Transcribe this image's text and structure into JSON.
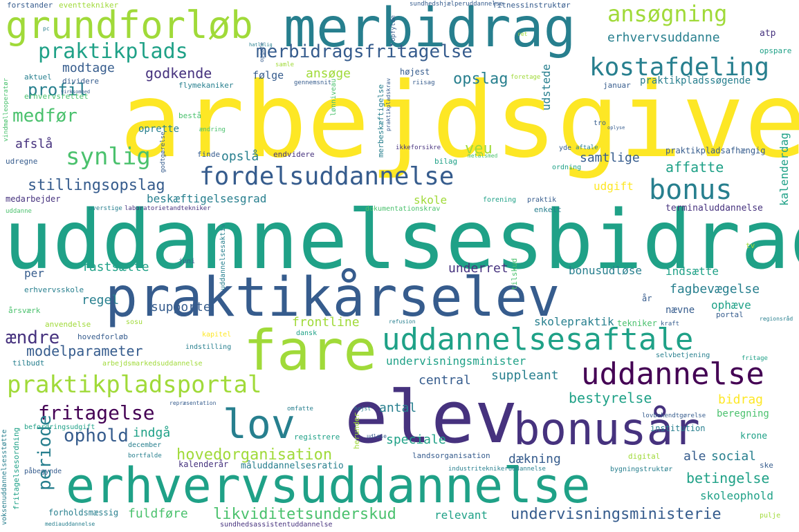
{
  "colors": {
    "background": "#ffffff",
    "palette": [
      "#440154",
      "#46327e",
      "#365c8d",
      "#277f8e",
      "#1fa187",
      "#4ac16d",
      "#a0da39",
      "#fde725"
    ]
  },
  "words": [
    {
      "text": "arbejdsgiver",
      "color": 7
    },
    {
      "text": "uddannelsesbidrag",
      "color": 4
    },
    {
      "text": "merbidrag",
      "color": 3
    },
    {
      "text": "grundforløb",
      "color": 6
    },
    {
      "text": "praktikårselev",
      "color": 2
    },
    {
      "text": "elev",
      "color": 1
    },
    {
      "text": "fare",
      "color": 6
    },
    {
      "text": "erhvervsuddannelse",
      "color": 4
    },
    {
      "text": "bonusår",
      "color": 1
    },
    {
      "text": "uddannelsesaftale",
      "color": 4
    },
    {
      "text": "uddannelse",
      "color": 0
    },
    {
      "text": "praktikpladsportal",
      "color": 6
    },
    {
      "text": "lov",
      "color": 3
    },
    {
      "text": "fordelsuddannelse",
      "color": 2
    },
    {
      "text": "bonus",
      "color": 3
    },
    {
      "text": "kostafdeling",
      "color": 3
    },
    {
      "text": "ansøgning",
      "color": 6
    },
    {
      "text": "praktikplads",
      "color": 4
    },
    {
      "text": "merbidragsfritagelse",
      "color": 2
    },
    {
      "text": "synlig",
      "color": 5
    },
    {
      "text": "medfør",
      "color": 5
    },
    {
      "text": "modtage",
      "color": 2
    },
    {
      "text": "godkende",
      "color": 1
    },
    {
      "text": "profil",
      "color": 3
    },
    {
      "text": "afslå",
      "color": 1
    },
    {
      "text": "stillingsopslag",
      "color": 2
    },
    {
      "text": "opslag",
      "color": 3
    },
    {
      "text": "ansøge",
      "color": 6
    },
    {
      "text": "følge",
      "color": 2
    },
    {
      "text": "erhvervsuddanne",
      "color": 3
    },
    {
      "text": "udstede",
      "color": 3
    },
    {
      "text": "praktikpladssøgende",
      "color": 3
    },
    {
      "text": "veu",
      "color": 6
    },
    {
      "text": "samtlige",
      "color": 2
    },
    {
      "text": "affatte",
      "color": 4
    },
    {
      "text": "kalenderdag",
      "color": 4
    },
    {
      "text": "opslå",
      "color": 3
    },
    {
      "text": "beskæftigelsesgrad",
      "color": 3
    },
    {
      "text": "skole",
      "color": 6
    },
    {
      "text": "udgift",
      "color": 7
    },
    {
      "text": "praktikpladsafhængig",
      "color": 2
    },
    {
      "text": "terminaluddannelse",
      "color": 1
    },
    {
      "text": "fritagelse",
      "color": 0
    },
    {
      "text": "ophold",
      "color": 2
    },
    {
      "text": "periode",
      "color": 3
    },
    {
      "text": "hovedorganisation",
      "color": 6
    },
    {
      "text": "likviditetsunderskud",
      "color": 5
    },
    {
      "text": "undervisningsministerie",
      "color": 2
    },
    {
      "text": "undervisningsminister",
      "color": 4
    },
    {
      "text": "modelparameter",
      "color": 2
    },
    {
      "text": "ændre",
      "color": 1
    },
    {
      "text": "supporte",
      "color": 2
    },
    {
      "text": "regel",
      "color": 3
    },
    {
      "text": "fastsætte",
      "color": 4
    },
    {
      "text": "per",
      "color": 2
    },
    {
      "text": "underret",
      "color": 1
    },
    {
      "text": "bonusudløse",
      "color": 3
    },
    {
      "text": "indsætte",
      "color": 4
    },
    {
      "text": "fagbevægelse",
      "color": 3
    },
    {
      "text": "ophæve",
      "color": 4
    },
    {
      "text": "nævne",
      "color": 2
    },
    {
      "text": "frontline",
      "color": 6
    },
    {
      "text": "skolepraktik",
      "color": 3
    },
    {
      "text": "central",
      "color": 2
    },
    {
      "text": "suppleant",
      "color": 3
    },
    {
      "text": "antal",
      "color": 3
    },
    {
      "text": "bestyrelse",
      "color": 4
    },
    {
      "text": "bidrag",
      "color": 7
    },
    {
      "text": "beregning",
      "color": 5
    },
    {
      "text": "indgå",
      "color": 4
    },
    {
      "text": "speciale",
      "color": 4
    },
    {
      "text": "dækning",
      "color": 2
    },
    {
      "text": "ale",
      "color": 2
    },
    {
      "text": "social",
      "color": 3
    },
    {
      "text": "betingelse",
      "color": 4
    },
    {
      "text": "skoleophold",
      "color": 4
    },
    {
      "text": "fuldføre",
      "color": 5
    },
    {
      "text": "relevant",
      "color": 4
    },
    {
      "text": "krone",
      "color": 4
    },
    {
      "text": "institution",
      "color": 3
    },
    {
      "text": "forstander",
      "color": 2
    },
    {
      "text": "eventtekniker",
      "color": 6
    },
    {
      "text": "sundhedshjælperuddannelse",
      "color": 2
    },
    {
      "text": "fitnessinstruktør",
      "color": 2
    },
    {
      "text": "atp",
      "color": 1
    },
    {
      "text": "opspare",
      "color": 4
    },
    {
      "text": "aktuel",
      "color": 3
    },
    {
      "text": "dividere",
      "color": 2
    },
    {
      "text": "erhvervsrettet",
      "color": 5
    },
    {
      "text": "flymekaniker",
      "color": 3
    },
    {
      "text": "samle",
      "color": 6
    },
    {
      "text": "gennemsnit",
      "color": 2
    },
    {
      "text": "højest",
      "color": 2
    },
    {
      "text": "riisag",
      "color": 2
    },
    {
      "text": "foretage",
      "color": 6
    },
    {
      "text": "januar",
      "color": 2
    },
    {
      "text": "bestå",
      "color": 5
    },
    {
      "text": "ændring",
      "color": 5
    },
    {
      "text": "oprette",
      "color": 3
    },
    {
      "text": "tro",
      "color": 2
    },
    {
      "text": "finde",
      "color": 2
    },
    {
      "text": "endvidere",
      "color": 1
    },
    {
      "text": "yde",
      "color": 2
    },
    {
      "text": "aftale",
      "color": 3
    },
    {
      "text": "udregne",
      "color": 2
    },
    {
      "text": "bilag",
      "color": 4
    },
    {
      "text": "metalsmed",
      "color": 5
    },
    {
      "text": "ordning",
      "color": 4
    },
    {
      "text": "medarbejder",
      "color": 1
    },
    {
      "text": "uddanne",
      "color": 5
    },
    {
      "text": "overstige",
      "color": 3
    },
    {
      "text": "laboratorietandtekniker",
      "color": 1
    },
    {
      "text": "dokumentationskrav",
      "color": 5
    },
    {
      "text": "forening",
      "color": 4
    },
    {
      "text": "praktik",
      "color": 2
    },
    {
      "text": "enkelt",
      "color": 3
    },
    {
      "text": "tilskud",
      "color": 5
    },
    {
      "text": "juni",
      "color": 2
    },
    {
      "text": "tv",
      "color": 6
    },
    {
      "text": "år",
      "color": 2
    },
    {
      "text": "erhvervsskole",
      "color": 3
    },
    {
      "text": "årsværk",
      "color": 5
    },
    {
      "text": "portal",
      "color": 2
    },
    {
      "text": "anvendelse",
      "color": 6
    },
    {
      "text": "sosu",
      "color": 6
    },
    {
      "text": "refusion",
      "color": 3
    },
    {
      "text": "tekniker",
      "color": 5
    },
    {
      "text": "kraft",
      "color": 2
    },
    {
      "text": "hovedforløb",
      "color": 2
    },
    {
      "text": "dansk",
      "color": 4
    },
    {
      "text": "kapitel",
      "color": 7
    },
    {
      "text": "indstilling",
      "color": 3
    },
    {
      "text": "tilbudt",
      "color": 3
    },
    {
      "text": "arbejdsmarkedsuddannelse",
      "color": 6
    },
    {
      "text": "selvbetjening",
      "color": 3
    },
    {
      "text": "fritage",
      "color": 4
    },
    {
      "text": "repræsentation",
      "color": 2
    },
    {
      "text": "omfatte",
      "color": 3
    },
    {
      "text": "højst",
      "color": 3
    },
    {
      "text": "befordringsudgift",
      "color": 4
    },
    {
      "text": "registrere",
      "color": 4
    },
    {
      "text": "lovbekendtgørelse",
      "color": 2
    },
    {
      "text": "december",
      "color": 3
    },
    {
      "text": "bortfalde",
      "color": 3
    },
    {
      "text": "landsorganisation",
      "color": 2
    },
    {
      "text": "påbegynde",
      "color": 2
    },
    {
      "text": "kalenderår",
      "color": 1
    },
    {
      "text": "måluddannelsesratio",
      "color": 3
    },
    {
      "text": "industriteknikeruddannelse",
      "color": 3
    },
    {
      "text": "bygningstruktør",
      "color": 3
    },
    {
      "text": "digital",
      "color": 6
    },
    {
      "text": "ske",
      "color": 2
    },
    {
      "text": "forholdsmæssig",
      "color": 3
    },
    {
      "text": "mediauddannelse",
      "color": 3
    },
    {
      "text": "sundhedsassistentuddannelse",
      "color": 1
    },
    {
      "text": "pulje",
      "color": 6
    },
    {
      "text": "vindmølleoperatør",
      "color": 5
    },
    {
      "text": "fritagelsesordning",
      "color": 4
    },
    {
      "text": "voksenuddannelsesstøtte",
      "color": 3
    },
    {
      "text": "merbeskæftigelse",
      "color": 3
    },
    {
      "text": "lønniveau",
      "color": 5
    },
    {
      "text": "uddannelsesaktiv",
      "color": 3
    },
    {
      "text": "herunder",
      "color": 6
    },
    {
      "text": "pc",
      "color": 3
    },
    {
      "text": "opfylde",
      "color": 2
    },
    {
      "text": "ret",
      "color": 6
    },
    {
      "text": "praktikpladskrav",
      "color": 2
    },
    {
      "text": "ikkeforsikre",
      "color": 1
    },
    {
      "text": "godtgørelse",
      "color": 2
    },
    {
      "text": "opgøre",
      "color": 2
    },
    {
      "text": "hatlalig",
      "color": 3
    },
    {
      "text": "virksomhed",
      "color": 2
    },
    {
      "text": "oplyse",
      "color": 2
    },
    {
      "text": "udløse",
      "color": 2
    },
    {
      "text": "regionsråd",
      "color": 3
    }
  ]
}
